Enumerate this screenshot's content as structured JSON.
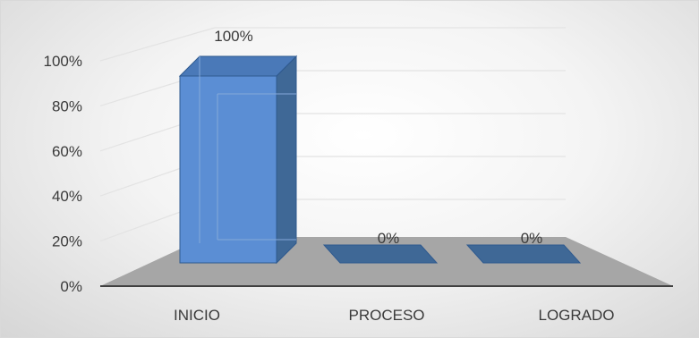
{
  "chart_data": {
    "type": "bar",
    "style": "3d-column",
    "categories": [
      "INICIO",
      "PROCESO",
      "LOGRADO"
    ],
    "values": [
      100,
      0,
      0
    ],
    "data_labels": [
      "100%",
      "0%",
      "0%"
    ],
    "y_ticks": [
      "0%",
      "20%",
      "40%",
      "60%",
      "80%",
      "100%"
    ],
    "ylim": [
      0,
      100
    ],
    "grid": true,
    "title": "",
    "xlabel": "",
    "ylabel": "",
    "colors": {
      "bar_front": "#5b8ed4",
      "bar_side": "#3f6896",
      "bar_top": "#4a79b8",
      "floor": "#a6a6a6",
      "gridline": "#e3e3e3",
      "axis": "#404040"
    }
  }
}
